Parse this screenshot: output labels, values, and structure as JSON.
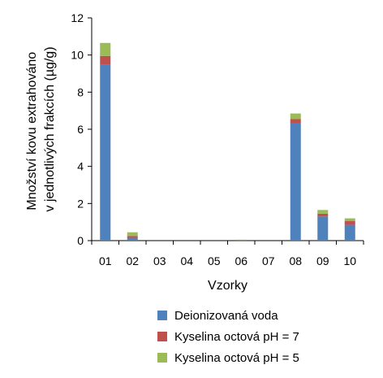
{
  "chart_data": {
    "type": "bar",
    "stacked": true,
    "categories": [
      "01",
      "02",
      "03",
      "04",
      "05",
      "06",
      "07",
      "08",
      "09",
      "10"
    ],
    "series": [
      {
        "name": "Deionizovaná voda",
        "color": "#4f81bd",
        "values": [
          9.5,
          0.15,
          0,
          0,
          0,
          0,
          0,
          6.35,
          1.3,
          0.85
        ]
      },
      {
        "name": "Kyselina octová pH = 7",
        "color": "#c0504d",
        "values": [
          0.45,
          0.1,
          0,
          0,
          0,
          0.02,
          0,
          0.2,
          0.15,
          0.2
        ]
      },
      {
        "name": "Kyselina octová pH = 5",
        "color": "#9bbb59",
        "values": [
          0.7,
          0.2,
          0,
          0,
          0,
          0.03,
          0,
          0.3,
          0.2,
          0.15
        ]
      }
    ],
    "xlabel": "Vzorky",
    "ylabel_lines": [
      "Množství kovu extrahováno",
      "v jednotlivých frakcích (µg/g)"
    ],
    "ylim": [
      0,
      12
    ],
    "yticks": [
      "0",
      "2",
      "4",
      "6",
      "8",
      "10",
      "12"
    ],
    "grid": false,
    "legend_position": "bottom"
  }
}
